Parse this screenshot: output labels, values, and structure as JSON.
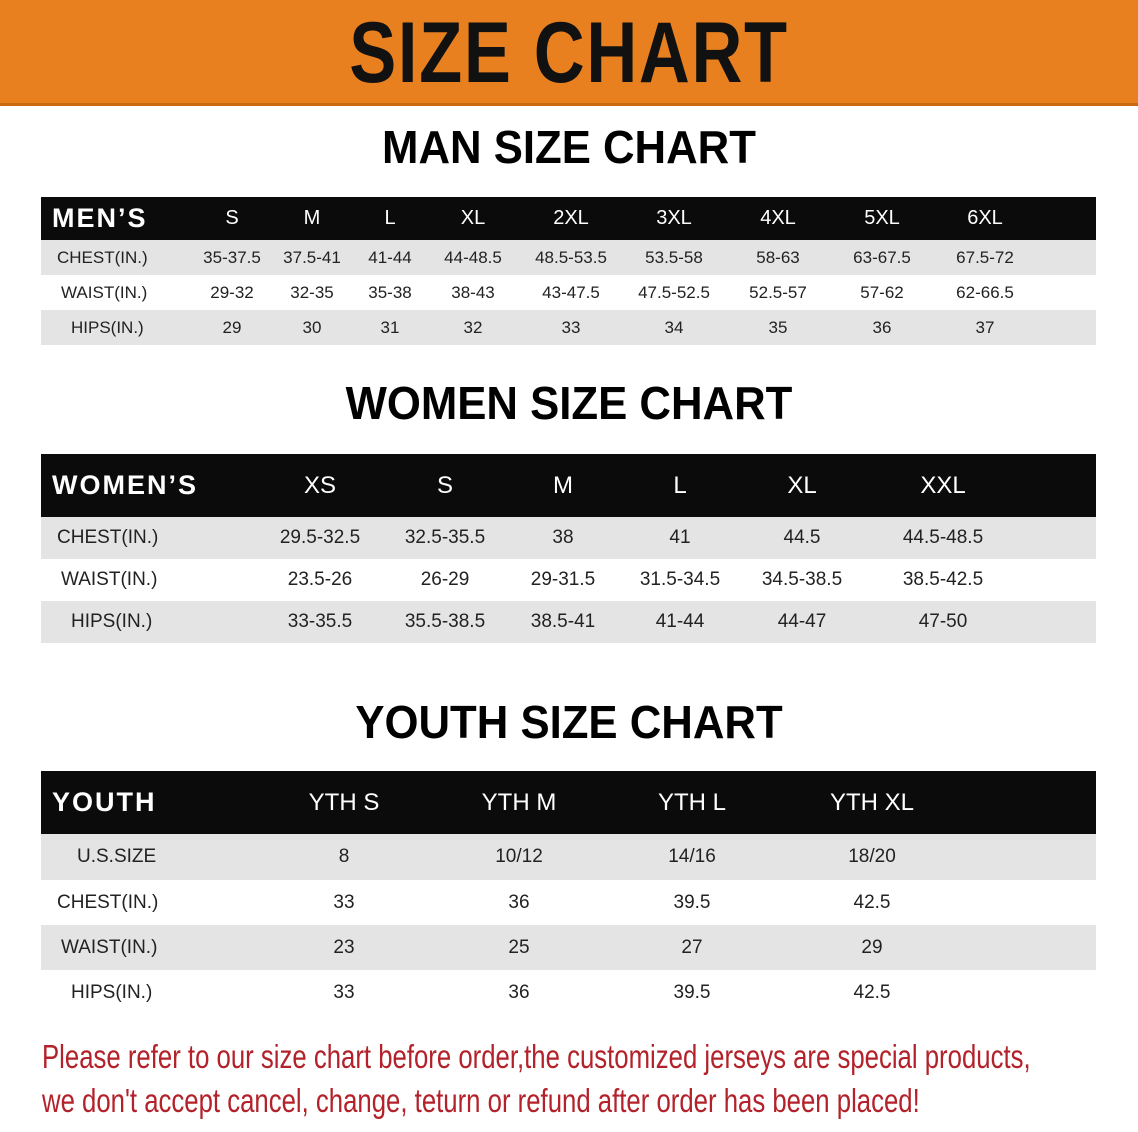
{
  "banner_title": "SIZE CHART",
  "colors": {
    "banner": "#e9801f",
    "header_row": "#0b0b0b",
    "stripe": "#e4e4e4",
    "notice": "#b3222a"
  },
  "men": {
    "title": "MAN SIZE CHART",
    "header": "MEN’S",
    "sizes": [
      "S",
      "M",
      "L",
      "XL",
      "2XL",
      "3XL",
      "4XL",
      "5XL",
      "6XL"
    ],
    "rows": [
      {
        "label": "CHEST(IN.)",
        "values": [
          "35-37.5",
          "37.5-41",
          "41-44",
          "44-48.5",
          "48.5-53.5",
          "53.5-58",
          "58-63",
          "63-67.5",
          "67.5-72"
        ]
      },
      {
        "label": "WAIST(IN.)",
        "values": [
          "29-32",
          "32-35",
          "35-38",
          "38-43",
          "43-47.5",
          "47.5-52.5",
          "52.5-57",
          "57-62",
          "62-66.5"
        ]
      },
      {
        "label": "HIPS(IN.)",
        "values": [
          "29",
          "30",
          "31",
          "32",
          "33",
          "34",
          "35",
          "36",
          "37"
        ]
      }
    ]
  },
  "women": {
    "title": "WOMEN SIZE CHART",
    "header": "WOMEN’S",
    "sizes": [
      "XS",
      "S",
      "M",
      "L",
      "XL",
      "XXL"
    ],
    "rows": [
      {
        "label": "CHEST(IN.)",
        "values": [
          "29.5-32.5",
          "32.5-35.5",
          "38",
          "41",
          "44.5",
          "44.5-48.5"
        ]
      },
      {
        "label": "WAIST(IN.)",
        "values": [
          "23.5-26",
          "26-29",
          "29-31.5",
          "31.5-34.5",
          "34.5-38.5",
          "38.5-42.5"
        ]
      },
      {
        "label": "HIPS(IN.)",
        "values": [
          "33-35.5",
          "35.5-38.5",
          "38.5-41",
          "41-44",
          "44-47",
          "47-50"
        ]
      }
    ]
  },
  "youth": {
    "title": "YOUTH SIZE CHART",
    "header": "YOUTH",
    "sizes": [
      "YTH S",
      "YTH M",
      "YTH L",
      "YTH XL"
    ],
    "rows": [
      {
        "label": "U.S.SIZE",
        "values": [
          "8",
          "10/12",
          "14/16",
          "18/20"
        ]
      },
      {
        "label": "CHEST(IN.)",
        "values": [
          "33",
          "36",
          "39.5",
          "42.5"
        ]
      },
      {
        "label": "WAIST(IN.)",
        "values": [
          "23",
          "25",
          "27",
          "29"
        ]
      },
      {
        "label": "HIPS(IN.)",
        "values": [
          "33",
          "36",
          "39.5",
          "42.5"
        ]
      }
    ]
  },
  "notice": [
    "Please refer to our size chart before order,the customized jerseys are special products,",
    "we don't accept cancel, change, teturn or refund after order has been placed!"
  ]
}
